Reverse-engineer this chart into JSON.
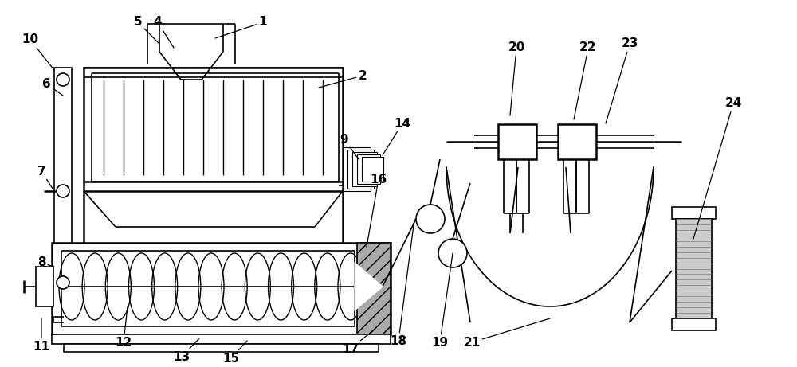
{
  "bg_color": "#ffffff",
  "line_color": "#000000",
  "gray_color": "#888888",
  "light_gray": "#cccccc",
  "dark_gray": "#555555",
  "label_fontsize": 11,
  "label_fontweight": "bold",
  "figsize": [
    10.0,
    4.61
  ],
  "dpi": 100
}
